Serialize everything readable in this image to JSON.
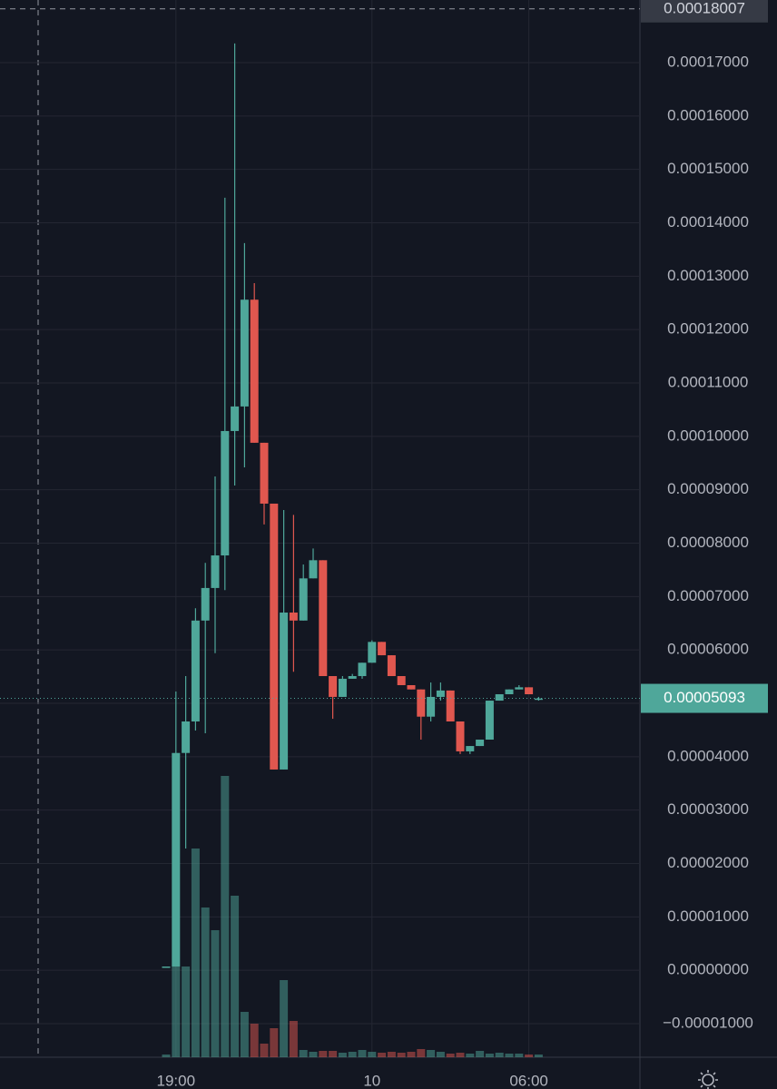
{
  "chart_data": {
    "type": "candlestick",
    "categories": [
      null,
      "19:00",
      null,
      null,
      null,
      null,
      null,
      null,
      null,
      null,
      null,
      null,
      null,
      null,
      null,
      null,
      null,
      null,
      null,
      null,
      null,
      "10",
      null,
      null,
      null,
      null,
      null,
      null,
      null,
      null,
      null,
      null,
      null,
      null,
      null,
      null,
      null,
      "06:00",
      null
    ],
    "open": [
      7e-07,
      7e-07,
      4.07e-05,
      4.66e-05,
      6.55e-05,
      7.16e-05,
      7.77e-05,
      0.000101,
      0.0001056,
      0.0001256,
      9.88e-05,
      8.74e-05,
      3.76e-05,
      6.7e-05,
      6.55e-05,
      7.34e-05,
      7.68e-05,
      5.51e-05,
      5.12e-05,
      5.46e-05,
      5.51e-05,
      5.76e-05,
      6.15e-05,
      5.9e-05,
      5.51e-05,
      5.34e-05,
      5.26e-05,
      4.75e-05,
      5.12e-05,
      5.24e-05,
      4.66e-05,
      4.1e-05,
      4.2e-05,
      4.32e-05,
      5.05e-05,
      5.17e-05,
      5.26e-05,
      5.3e-05,
      5.09e-05
    ],
    "high": [
      7e-07,
      5.22e-05,
      5.51e-05,
      6.78e-05,
      7.63e-05,
      9.25e-05,
      0.0001447,
      0.0001736,
      0.0001362,
      0.0001287,
      9.88e-05,
      8.74e-05,
      8.62e-05,
      8.53e-05,
      7.6e-05,
      7.9e-05,
      7.68e-05,
      5.51e-05,
      5.51e-05,
      5.55e-05,
      5.76e-05,
      6.18e-05,
      6.15e-05,
      5.9e-05,
      5.51e-05,
      5.34e-05,
      5.26e-05,
      5.39e-05,
      5.39e-05,
      5.24e-05,
      4.66e-05,
      4.2e-05,
      4.32e-05,
      5.05e-05,
      5.17e-05,
      5.26e-05,
      5.34e-05,
      5.3e-05,
      5.12e-05
    ],
    "low": [
      7e-07,
      7e-07,
      2.28e-05,
      4.49e-05,
      4.44e-05,
      5.94e-05,
      7.12e-05,
      9.08e-05,
      9.42e-05,
      9.88e-05,
      8.35e-05,
      3.76e-05,
      3.76e-05,
      5.59e-05,
      6.55e-05,
      7.34e-05,
      5.51e-05,
      4.71e-05,
      5.12e-05,
      5.46e-05,
      5.46e-05,
      5.76e-05,
      5.9e-05,
      5.51e-05,
      5.34e-05,
      5.26e-05,
      4.32e-05,
      4.66e-05,
      5.05e-05,
      4.66e-05,
      4.05e-05,
      4.05e-05,
      4.2e-05,
      4.32e-05,
      5.05e-05,
      5.17e-05,
      5.26e-05,
      5.17e-05,
      5.05e-05
    ],
    "close": [
      7e-07,
      4.07e-05,
      4.66e-05,
      6.55e-05,
      7.16e-05,
      7.77e-05,
      0.000101,
      0.0001056,
      0.0001256,
      9.88e-05,
      8.74e-05,
      3.76e-05,
      6.7e-05,
      6.55e-05,
      7.34e-05,
      7.68e-05,
      5.51e-05,
      5.12e-05,
      5.46e-05,
      5.51e-05,
      5.76e-05,
      6.15e-05,
      5.9e-05,
      5.51e-05,
      5.34e-05,
      5.26e-05,
      4.75e-05,
      5.12e-05,
      5.24e-05,
      4.66e-05,
      4.1e-05,
      4.2e-05,
      4.32e-05,
      5.05e-05,
      5.17e-05,
      5.26e-05,
      5.3e-05,
      5.17e-05,
      5.09e-05
    ],
    "volume": [
      3,
      100,
      100,
      230,
      165,
      140,
      310,
      178,
      50,
      37,
      15,
      32,
      85,
      40,
      8,
      6,
      7,
      7,
      5,
      6,
      8,
      6,
      5,
      6,
      5,
      6,
      9,
      8,
      6,
      4,
      5,
      4,
      7,
      4,
      5,
      4,
      4,
      3,
      3
    ],
    "up_color": "#4fa79a",
    "down_color": "#e0574f",
    "ylim": [
      -1.629e-05,
      0.00018173
    ],
    "yticks": [
      {
        "value": 0.00017,
        "label": "0.00017000"
      },
      {
        "value": 0.00016,
        "label": "0.00016000"
      },
      {
        "value": 0.00015,
        "label": "0.00015000"
      },
      {
        "value": 0.00014,
        "label": "0.00014000"
      },
      {
        "value": 0.00013,
        "label": "0.00013000"
      },
      {
        "value": 0.00012,
        "label": "0.00012000"
      },
      {
        "value": 0.00011,
        "label": "0.00011000"
      },
      {
        "value": 0.0001,
        "label": "0.00010000"
      },
      {
        "value": 9e-05,
        "label": "0.00009000"
      },
      {
        "value": 8e-05,
        "label": "0.00008000"
      },
      {
        "value": 7e-05,
        "label": "0.00007000"
      },
      {
        "value": 6e-05,
        "label": "0.00006000"
      },
      {
        "value": 5e-05,
        "label": "0.00005000"
      },
      {
        "value": 4e-05,
        "label": "0.00004000"
      },
      {
        "value": 3e-05,
        "label": "0.00003000"
      },
      {
        "value": 2e-05,
        "label": "0.00002000"
      },
      {
        "value": 1e-05,
        "label": "0.00001000"
      },
      {
        "value": 0,
        "label": "0.00000000"
      },
      {
        "value": -1e-05,
        "label": "−0.00001000"
      }
    ],
    "grid": true,
    "last_price": {
      "value": 5.093e-05,
      "label": "0.00005093"
    },
    "high_marker": {
      "value": 0.00018007,
      "label": "0.00018007"
    }
  }
}
